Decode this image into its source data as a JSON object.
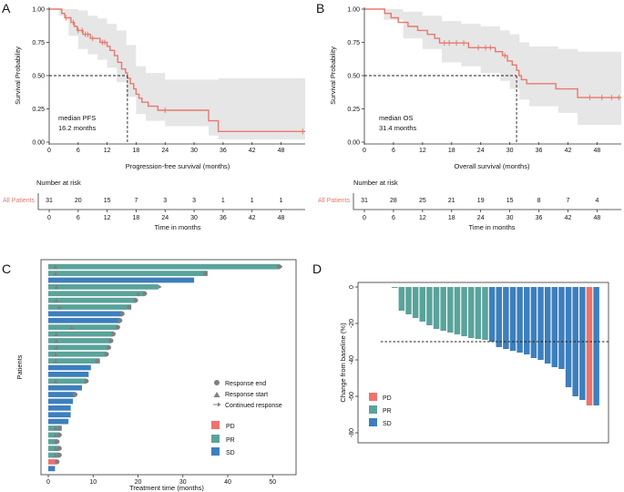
{
  "colors": {
    "km_line": "#e8786f",
    "ci_band": "#e6e6e6",
    "pd": "#f0726c",
    "pr": "#5aa39b",
    "sd": "#3d7fbd",
    "marker": "#7f7f7f",
    "risk_label": "#e8786f"
  },
  "panels": {
    "a": "A",
    "b": "B",
    "c": "C",
    "d": "D"
  },
  "chart_data": [
    {
      "id": "A",
      "type": "line",
      "subtype": "kaplan-meier",
      "xlabel": "Progression-free survival (months)",
      "ylabel": "Survival Probability",
      "xlim": [
        0,
        53
      ],
      "ylim": [
        0,
        1.0
      ],
      "xticks": [
        "0",
        "6",
        "12",
        "18",
        "24",
        "30",
        "36",
        "42",
        "48"
      ],
      "yticks": [
        "0.00",
        "0.25",
        "0.50",
        "0.75",
        "1.00"
      ],
      "xticks_v": [
        0,
        6,
        12,
        18,
        24,
        30,
        36,
        42,
        48
      ],
      "yticks_v": [
        0,
        0.25,
        0.5,
        0.75,
        1.0
      ],
      "median_value": 16.2,
      "median_label": "median PFS",
      "median_text": "16.2 months",
      "steps": [
        [
          0,
          1.0
        ],
        [
          2,
          1.0
        ],
        [
          2.6,
          0.968
        ],
        [
          3.2,
          0.935
        ],
        [
          4.5,
          0.9
        ],
        [
          5.2,
          0.87
        ],
        [
          5.8,
          0.84
        ],
        [
          7.0,
          0.81
        ],
        [
          8.5,
          0.78
        ],
        [
          10.5,
          0.75
        ],
        [
          12.0,
          0.72
        ],
        [
          12.6,
          0.69
        ],
        [
          13.5,
          0.65
        ],
        [
          14.2,
          0.6
        ],
        [
          15.0,
          0.55
        ],
        [
          15.8,
          0.52
        ],
        [
          16.2,
          0.48
        ],
        [
          16.8,
          0.44
        ],
        [
          17.5,
          0.4
        ],
        [
          18.0,
          0.36
        ],
        [
          18.6,
          0.33
        ],
        [
          19.2,
          0.3
        ],
        [
          20.5,
          0.27
        ],
        [
          22.5,
          0.24
        ],
        [
          33.0,
          0.16
        ],
        [
          35.0,
          0.08
        ],
        [
          53.0,
          0.08
        ]
      ],
      "ci_upper": [
        [
          0,
          1.0
        ],
        [
          2,
          1.0
        ],
        [
          4,
          1.0
        ],
        [
          6,
          0.99
        ],
        [
          8,
          0.95
        ],
        [
          10,
          0.93
        ],
        [
          12,
          0.89
        ],
        [
          14,
          0.84
        ],
        [
          16,
          0.73
        ],
        [
          18,
          0.57
        ],
        [
          20,
          0.52
        ],
        [
          24,
          0.47
        ],
        [
          33,
          0.47
        ],
        [
          35,
          0.48
        ],
        [
          53,
          0.48
        ]
      ],
      "ci_lower": [
        [
          0,
          1.0
        ],
        [
          2,
          0.95
        ],
        [
          4,
          0.8
        ],
        [
          6,
          0.7
        ],
        [
          8,
          0.66
        ],
        [
          10,
          0.62
        ],
        [
          12,
          0.56
        ],
        [
          14,
          0.45
        ],
        [
          16,
          0.34
        ],
        [
          18,
          0.21
        ],
        [
          20,
          0.16
        ],
        [
          24,
          0.12
        ],
        [
          33,
          0.05
        ],
        [
          35,
          0.02
        ],
        [
          53,
          0.02
        ]
      ],
      "censor": [
        [
          3.5,
          0.935
        ],
        [
          5.0,
          0.9
        ],
        [
          6.0,
          0.84
        ],
        [
          6.8,
          0.84
        ],
        [
          7.5,
          0.81
        ],
        [
          8.0,
          0.81
        ],
        [
          9.0,
          0.78
        ],
        [
          11.0,
          0.75
        ],
        [
          11.5,
          0.75
        ],
        [
          24.0,
          0.24
        ],
        [
          52.5,
          0.08
        ]
      ],
      "risk_title": "Number at risk",
      "risk_group": "All Patients",
      "risk_values": [
        "31",
        "20",
        "15",
        "7",
        "3",
        "3",
        "1",
        "1",
        "1"
      ],
      "risk_xlabel": "Time in months"
    },
    {
      "id": "B",
      "type": "line",
      "subtype": "kaplan-meier",
      "xlabel": "Overall survival (months)",
      "ylabel": "Survival Probability",
      "xlim": [
        0,
        53
      ],
      "ylim": [
        0,
        1.0
      ],
      "xticks": [
        "0",
        "6",
        "12",
        "18",
        "24",
        "30",
        "36",
        "42",
        "48"
      ],
      "yticks": [
        "0.00",
        "0.25",
        "0.50",
        "0.75",
        "1.00"
      ],
      "xticks_v": [
        0,
        6,
        12,
        18,
        24,
        30,
        36,
        42,
        48
      ],
      "yticks_v": [
        0,
        0.25,
        0.5,
        0.75,
        1.0
      ],
      "median_value": 31.4,
      "median_label": "median OS",
      "median_text": "31.4 months",
      "steps": [
        [
          0,
          1.0
        ],
        [
          3.5,
          1.0
        ],
        [
          4.2,
          0.968
        ],
        [
          5.5,
          0.935
        ],
        [
          7.0,
          0.9
        ],
        [
          9.0,
          0.87
        ],
        [
          11.0,
          0.84
        ],
        [
          13.0,
          0.81
        ],
        [
          14.5,
          0.78
        ],
        [
          15.5,
          0.745
        ],
        [
          21.5,
          0.71
        ],
        [
          27.0,
          0.68
        ],
        [
          28.5,
          0.65
        ],
        [
          29.5,
          0.61
        ],
        [
          30.5,
          0.58
        ],
        [
          31.4,
          0.54
        ],
        [
          31.9,
          0.5
        ],
        [
          32.4,
          0.47
        ],
        [
          33.5,
          0.44
        ],
        [
          39.5,
          0.4
        ],
        [
          44.0,
          0.335
        ],
        [
          53.0,
          0.335
        ]
      ],
      "ci_upper": [
        [
          0,
          1.0
        ],
        [
          4,
          1.0
        ],
        [
          8,
          0.98
        ],
        [
          12,
          0.95
        ],
        [
          16,
          0.91
        ],
        [
          20,
          0.89
        ],
        [
          24,
          0.87
        ],
        [
          28,
          0.84
        ],
        [
          30,
          0.81
        ],
        [
          32,
          0.75
        ],
        [
          34,
          0.72
        ],
        [
          40,
          0.7
        ],
        [
          44,
          0.68
        ],
        [
          53,
          0.68
        ]
      ],
      "ci_lower": [
        [
          0,
          1.0
        ],
        [
          4,
          0.92
        ],
        [
          8,
          0.78
        ],
        [
          12,
          0.7
        ],
        [
          16,
          0.6
        ],
        [
          20,
          0.57
        ],
        [
          24,
          0.52
        ],
        [
          28,
          0.46
        ],
        [
          30,
          0.4
        ],
        [
          32,
          0.32
        ],
        [
          34,
          0.27
        ],
        [
          40,
          0.22
        ],
        [
          44,
          0.13
        ],
        [
          53,
          0.13
        ]
      ],
      "censor": [
        [
          16.5,
          0.745
        ],
        [
          17.5,
          0.745
        ],
        [
          19.0,
          0.745
        ],
        [
          20.5,
          0.745
        ],
        [
          23.5,
          0.71
        ],
        [
          25.0,
          0.71
        ],
        [
          26.0,
          0.71
        ],
        [
          29.0,
          0.65
        ],
        [
          46.5,
          0.335
        ],
        [
          49.0,
          0.335
        ],
        [
          51.0,
          0.335
        ],
        [
          52.5,
          0.335
        ]
      ],
      "risk_title": "Number at risk",
      "risk_group": "All Patients",
      "risk_values": [
        "31",
        "28",
        "25",
        "21",
        "19",
        "15",
        "8",
        "7",
        "4"
      ],
      "risk_xlabel": "Time in months"
    },
    {
      "id": "C",
      "type": "bar",
      "subtype": "swimmer",
      "xlabel": "Treatment time (months)",
      "ylabel": "Patients",
      "xlim": [
        0,
        54
      ],
      "xticks": [
        "0",
        "10",
        "20",
        "30",
        "40",
        "50"
      ],
      "xticks_v": [
        0,
        10,
        20,
        30,
        40,
        50
      ],
      "legend_markers": [
        "Response end",
        "Response start",
        "Continued response"
      ],
      "legend_categories": [
        "PD",
        "PR",
        "SD"
      ],
      "bars": [
        {
          "type": "PR",
          "value": 51.5,
          "end": 51.5,
          "start": 1.6,
          "cont": true
        },
        {
          "type": "PR",
          "value": 35.5,
          "end": 35.0,
          "start": 1.6,
          "cont": false
        },
        {
          "type": "SD",
          "value": 32.5,
          "end": null,
          "start": null,
          "cont": false
        },
        {
          "type": "PR",
          "value": 24.5,
          "end": null,
          "start": 1.8,
          "cont": true
        },
        {
          "type": "PR",
          "value": 21.5,
          "end": 21.5,
          "start": 20.0,
          "cont": false
        },
        {
          "type": "PR",
          "value": 19.5,
          "end": 19.5,
          "start": 1.8,
          "cont": false
        },
        {
          "type": "PR",
          "value": 18.5,
          "end": 18.0,
          "start": 2.5,
          "cont": false
        },
        {
          "type": "SD",
          "value": 16.5,
          "end": 16.5,
          "start": null,
          "cont": false
        },
        {
          "type": "SD",
          "value": 16.0,
          "end": 16.0,
          "start": null,
          "cont": false
        },
        {
          "type": "PR",
          "value": 15.5,
          "end": 15.5,
          "start": 5.2,
          "cont": false
        },
        {
          "type": "PR",
          "value": 14.5,
          "end": 14.5,
          "start": 1.8,
          "cont": false
        },
        {
          "type": "PR",
          "value": 14.0,
          "end": 14.0,
          "start": 1.8,
          "cont": false
        },
        {
          "type": "PR",
          "value": 13.5,
          "end": 13.5,
          "start": 1.8,
          "cont": false
        },
        {
          "type": "PR",
          "value": 13.0,
          "end": 13.0,
          "start": 1.6,
          "cont": false
        },
        {
          "type": "PR",
          "value": 11.5,
          "end": 11.0,
          "start": 1.6,
          "cont": false
        },
        {
          "type": "SD",
          "value": 9.5,
          "end": null,
          "start": null,
          "cont": false
        },
        {
          "type": "SD",
          "value": 9.0,
          "end": null,
          "start": null,
          "cont": false
        },
        {
          "type": "PR",
          "value": 8.5,
          "end": 8.5,
          "start": 1.6,
          "cont": false
        },
        {
          "type": "SD",
          "value": 7.5,
          "end": null,
          "start": null,
          "cont": false
        },
        {
          "type": "SD",
          "value": 6.0,
          "end": 6.0,
          "start": null,
          "cont": false
        },
        {
          "type": "SD",
          "value": 5.5,
          "end": null,
          "start": null,
          "cont": false
        },
        {
          "type": "SD",
          "value": 5.0,
          "end": null,
          "start": null,
          "cont": false
        },
        {
          "type": "SD",
          "value": 5.0,
          "end": null,
          "start": null,
          "cont": false
        },
        {
          "type": "SD",
          "value": 4.5,
          "end": null,
          "start": null,
          "cont": false
        },
        {
          "type": "PR",
          "value": 3.0,
          "end": 2.5,
          "start": 1.6,
          "cont": false
        },
        {
          "type": "PR",
          "value": 2.5,
          "end": 2.5,
          "start": 1.6,
          "cont": false
        },
        {
          "type": "PR",
          "value": 2.0,
          "end": 2.0,
          "start": 1.6,
          "cont": false
        },
        {
          "type": "PR",
          "value": 2.5,
          "end": 2.5,
          "start": 1.6,
          "cont": false
        },
        {
          "type": "PR",
          "value": 2.5,
          "end": 2.5,
          "start": 1.6,
          "cont": false
        },
        {
          "type": "PD",
          "value": 2.0,
          "end": 2.0,
          "start": null,
          "cont": false
        },
        {
          "type": "SD",
          "value": 1.5,
          "end": null,
          "start": null,
          "cont": false
        }
      ]
    },
    {
      "id": "D",
      "type": "bar",
      "subtype": "waterfall",
      "xlabel": "",
      "ylabel": "Change from baseline (%)",
      "ylim": [
        -85,
        2
      ],
      "yticks": [
        "0",
        "-20",
        "-40",
        "-60",
        "-80"
      ],
      "yticks_v": [
        0,
        -20,
        -40,
        -60,
        -80
      ],
      "threshold": -30,
      "legend_categories": [
        "PD",
        "PR",
        "SD"
      ],
      "bars": [
        {
          "type": "PR",
          "value": -0.5
        },
        {
          "type": "PR",
          "value": -13
        },
        {
          "type": "PR",
          "value": -15
        },
        {
          "type": "PR",
          "value": -17
        },
        {
          "type": "PR",
          "value": -19
        },
        {
          "type": "PR",
          "value": -21
        },
        {
          "type": "PR",
          "value": -23
        },
        {
          "type": "PR",
          "value": -24
        },
        {
          "type": "PR",
          "value": -25
        },
        {
          "type": "PR",
          "value": -26
        },
        {
          "type": "PR",
          "value": -27
        },
        {
          "type": "PR",
          "value": -28
        },
        {
          "type": "PR",
          "value": -28.5
        },
        {
          "type": "PR",
          "value": -29
        },
        {
          "type": "SD",
          "value": -30
        },
        {
          "type": "SD",
          "value": -33
        },
        {
          "type": "SD",
          "value": -34
        },
        {
          "type": "SD",
          "value": -35
        },
        {
          "type": "SD",
          "value": -36
        },
        {
          "type": "SD",
          "value": -37
        },
        {
          "type": "SD",
          "value": -39
        },
        {
          "type": "SD",
          "value": -40
        },
        {
          "type": "SD",
          "value": -42
        },
        {
          "type": "SD",
          "value": -44
        },
        {
          "type": "SD",
          "value": -45
        },
        {
          "type": "SD",
          "value": -55
        },
        {
          "type": "SD",
          "value": -60
        },
        {
          "type": "SD",
          "value": -62
        },
        {
          "type": "PD",
          "value": -65
        },
        {
          "type": "SD",
          "value": -65
        }
      ]
    }
  ]
}
